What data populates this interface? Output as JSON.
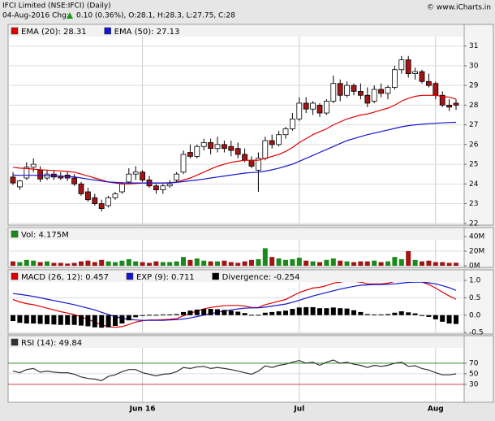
{
  "header": {
    "title": "IFCI Limited (NSE:IFCI) (Daily)",
    "date_change": "04-Aug-2016 Chg:",
    "change": "0.10 (0.36%), O:28.1, H:28.3, L:27.75, C:28",
    "source": "© www.iCharts.in"
  },
  "chart_data": [
    {
      "type": "candlestick",
      "categories": [
        null,
        null,
        null,
        null,
        null,
        null,
        null,
        null,
        null,
        null,
        null,
        null,
        null,
        null,
        null,
        null,
        null,
        null,
        null,
        "Jun 16",
        null,
        null,
        null,
        null,
        null,
        null,
        null,
        null,
        null,
        null,
        null,
        null,
        null,
        null,
        null,
        null,
        null,
        null,
        null,
        null,
        null,
        null,
        "Jul",
        null,
        null,
        null,
        null,
        null,
        null,
        null,
        null,
        null,
        null,
        null,
        null,
        null,
        null,
        null,
        null,
        null,
        null,
        null,
        "Aug",
        null,
        null,
        null
      ],
      "open": [
        24.35,
        23.85,
        24.3,
        24.85,
        24.7,
        24.3,
        24.5,
        24.4,
        24.45,
        24.3,
        24.0,
        23.6,
        23.3,
        23.0,
        22.9,
        23.3,
        23.6,
        24.1,
        24.5,
        24.6,
        24.2,
        23.9,
        23.7,
        23.9,
        24.2,
        24.6,
        25.6,
        25.4,
        25.9,
        26.1,
        25.8,
        26.0,
        25.9,
        25.8,
        25.5,
        25.2,
        24.7,
        25.3,
        26.2,
        26.0,
        26.5,
        26.8,
        27.3,
        28.1,
        27.8,
        28.0,
        27.6,
        28.2,
        29.1,
        28.5,
        29.0,
        28.7,
        28.5,
        28.2,
        28.8,
        28.6,
        28.9,
        29.8,
        30.3,
        29.6,
        29.7,
        29.2,
        29.1,
        28.5,
        28.0,
        28.1
      ],
      "high": [
        24.6,
        24.2,
        25.1,
        25.3,
        24.9,
        24.7,
        24.7,
        24.6,
        24.6,
        24.5,
        24.1,
        23.8,
        23.5,
        23.2,
        23.4,
        23.6,
        24.1,
        24.8,
        24.9,
        24.7,
        24.4,
        24.0,
        24.0,
        24.2,
        24.6,
        25.7,
        26.0,
        26.0,
        26.3,
        26.3,
        26.4,
        26.2,
        26.2,
        26.1,
        25.8,
        25.4,
        25.6,
        26.4,
        26.5,
        26.7,
        26.9,
        27.6,
        28.4,
        28.4,
        28.2,
        28.1,
        28.3,
        29.5,
        29.3,
        29.2,
        29.1,
        29.1,
        28.9,
        29.0,
        29.1,
        29.0,
        30.0,
        30.5,
        30.5,
        29.9,
        29.8,
        29.6,
        29.2,
        28.7,
        28.3,
        28.3
      ],
      "low": [
        23.95,
        23.7,
        24.2,
        24.6,
        24.1,
        24.2,
        24.2,
        24.2,
        24.15,
        23.9,
        23.4,
        23.1,
        22.9,
        22.6,
        22.8,
        23.2,
        23.5,
        24.0,
        24.2,
        24.1,
        23.8,
        23.5,
        23.5,
        23.8,
        24.1,
        24.5,
        25.3,
        25.3,
        25.7,
        25.5,
        25.6,
        25.6,
        25.4,
        25.3,
        25.1,
        24.8,
        23.6,
        25.2,
        25.8,
        25.9,
        26.3,
        26.7,
        27.2,
        27.6,
        27.5,
        27.4,
        27.5,
        28.1,
        28.2,
        28.4,
        28.5,
        28.3,
        27.9,
        28.1,
        28.4,
        28.3,
        28.8,
        29.6,
        29.4,
        29.3,
        29.1,
        28.9,
        28.3,
        27.9,
        27.7,
        27.75
      ],
      "close": [
        24.05,
        24.15,
        24.85,
        25.0,
        24.25,
        24.5,
        24.35,
        24.3,
        24.3,
        24.0,
        23.5,
        23.2,
        23.0,
        22.75,
        23.3,
        23.5,
        24.0,
        24.5,
        24.6,
        24.2,
        23.9,
        23.7,
        23.9,
        24.0,
        24.5,
        25.5,
        25.4,
        25.9,
        26.1,
        25.8,
        26.0,
        25.8,
        25.7,
        25.5,
        25.2,
        24.9,
        25.3,
        26.2,
        26.0,
        26.5,
        26.8,
        27.3,
        28.1,
        27.8,
        28.1,
        27.6,
        28.2,
        29.1,
        28.5,
        29.0,
        28.7,
        28.5,
        28.1,
        28.8,
        28.6,
        28.9,
        29.8,
        30.3,
        29.6,
        29.7,
        29.2,
        29.0,
        28.5,
        28.0,
        27.9,
        28.0
      ],
      "up_color": "#ffffff",
      "down_color": "#a31515",
      "series": [
        {
          "name": "EMA (20): 28.31",
          "color": "#e00000",
          "values": [
            24.85,
            24.8,
            24.78,
            24.75,
            24.72,
            24.7,
            24.68,
            24.66,
            24.63,
            24.6,
            24.5,
            24.4,
            24.3,
            24.2,
            24.1,
            24.05,
            24.0,
            24.0,
            24.02,
            24.05,
            24.05,
            24.05,
            24.05,
            24.06,
            24.1,
            24.2,
            24.3,
            24.45,
            24.6,
            24.75,
            24.9,
            25.0,
            25.1,
            25.15,
            25.2,
            25.2,
            25.2,
            25.3,
            25.4,
            25.5,
            25.65,
            25.85,
            26.1,
            26.3,
            26.5,
            26.65,
            26.8,
            27.0,
            27.15,
            27.3,
            27.4,
            27.5,
            27.55,
            27.65,
            27.75,
            27.85,
            28.0,
            28.2,
            28.35,
            28.45,
            28.5,
            28.5,
            28.5,
            28.45,
            28.4,
            28.31
          ]
        },
        {
          "name": "EMA (50): 27.13",
          "color": "#1515d0",
          "values": [
            24.45,
            24.44,
            24.44,
            24.44,
            24.43,
            24.42,
            24.41,
            24.4,
            24.38,
            24.36,
            24.3,
            24.25,
            24.2,
            24.15,
            24.1,
            24.08,
            24.06,
            24.05,
            24.05,
            24.05,
            24.05,
            24.05,
            24.05,
            24.06,
            24.08,
            24.12,
            24.16,
            24.2,
            24.25,
            24.3,
            24.35,
            24.4,
            24.45,
            24.5,
            24.55,
            24.58,
            24.6,
            24.65,
            24.72,
            24.8,
            24.9,
            25.0,
            25.15,
            25.3,
            25.45,
            25.6,
            25.75,
            25.9,
            26.05,
            26.2,
            26.3,
            26.4,
            26.5,
            26.58,
            26.66,
            26.74,
            26.82,
            26.9,
            26.96,
            27.0,
            27.03,
            27.06,
            27.08,
            27.1,
            27.12,
            27.13
          ]
        }
      ],
      "ylim": [
        21.95,
        32.1
      ],
      "yticks": [
        22,
        23,
        24,
        25,
        26,
        27,
        28,
        29,
        30,
        31
      ],
      "grid": true
    },
    {
      "type": "bar",
      "series": [
        {
          "name": "Vol: 4.175M",
          "color": "#1a8a1a",
          "down_color": "#a31515",
          "values": [
            6,
            5,
            8,
            7,
            5,
            6,
            4,
            4,
            3,
            4,
            6,
            7,
            5,
            8,
            6,
            5,
            7,
            9,
            6,
            5,
            4,
            6,
            5,
            5,
            6,
            12,
            8,
            10,
            7,
            6,
            6,
            7,
            5,
            4,
            6,
            8,
            9,
            24,
            12,
            10,
            8,
            9,
            11,
            7,
            6,
            5,
            8,
            10,
            7,
            6,
            5,
            6,
            6,
            7,
            5,
            6,
            12,
            9,
            20,
            8,
            6,
            7,
            5,
            5,
            4,
            4.175
          ]
        }
      ],
      "ylim": [
        0,
        50
      ],
      "yticks": [
        {
          "value": 0,
          "label": "0M"
        },
        {
          "value": 20,
          "label": "20M"
        },
        {
          "value": 40,
          "label": "40M"
        }
      ],
      "grid": true
    },
    {
      "type": "macd",
      "series": [
        {
          "name": "MACD (26, 12): 0.457",
          "color": "#e00000",
          "values": [
            0.45,
            0.38,
            0.33,
            0.3,
            0.25,
            0.2,
            0.15,
            0.1,
            0.06,
            0.02,
            -0.05,
            -0.12,
            -0.2,
            -0.28,
            -0.33,
            -0.35,
            -0.33,
            -0.27,
            -0.2,
            -0.16,
            -0.14,
            -0.14,
            -0.13,
            -0.12,
            -0.1,
            -0.02,
            0.05,
            0.12,
            0.18,
            0.22,
            0.25,
            0.27,
            0.28,
            0.28,
            0.26,
            0.22,
            0.22,
            0.3,
            0.35,
            0.4,
            0.45,
            0.55,
            0.65,
            0.72,
            0.78,
            0.8,
            0.85,
            0.92,
            0.95,
            0.98,
            0.97,
            0.95,
            0.9,
            0.9,
            0.9,
            0.92,
            0.97,
            1.03,
            1.02,
            1.0,
            0.95,
            0.88,
            0.78,
            0.66,
            0.55,
            0.457
          ]
        },
        {
          "name": "EXP (9): 0.711",
          "color": "#1515d0",
          "values": [
            0.62,
            0.6,
            0.57,
            0.54,
            0.5,
            0.46,
            0.42,
            0.38,
            0.34,
            0.3,
            0.25,
            0.2,
            0.15,
            0.08,
            0.02,
            -0.04,
            -0.09,
            -0.12,
            -0.14,
            -0.15,
            -0.15,
            -0.15,
            -0.15,
            -0.14,
            -0.13,
            -0.11,
            -0.08,
            -0.04,
            0.0,
            0.04,
            0.08,
            0.12,
            0.15,
            0.18,
            0.2,
            0.21,
            0.21,
            0.23,
            0.26,
            0.29,
            0.32,
            0.37,
            0.43,
            0.49,
            0.55,
            0.6,
            0.65,
            0.7,
            0.75,
            0.79,
            0.83,
            0.86,
            0.87,
            0.88,
            0.88,
            0.89,
            0.9,
            0.92,
            0.94,
            0.95,
            0.95,
            0.93,
            0.9,
            0.85,
            0.79,
            0.711
          ]
        },
        {
          "name": "Divergence: -0.254",
          "color": "#000000",
          "bars": true,
          "values": [
            -0.17,
            -0.22,
            -0.24,
            -0.24,
            -0.25,
            -0.26,
            -0.27,
            -0.28,
            -0.28,
            -0.28,
            -0.3,
            -0.32,
            -0.35,
            -0.36,
            -0.35,
            -0.31,
            -0.24,
            -0.15,
            -0.06,
            -0.01,
            0.01,
            0.01,
            0.02,
            0.02,
            0.03,
            0.09,
            0.13,
            0.16,
            0.18,
            0.18,
            0.17,
            0.15,
            0.13,
            0.1,
            0.06,
            0.01,
            0.01,
            0.07,
            0.09,
            0.11,
            0.13,
            0.18,
            0.22,
            0.23,
            0.23,
            0.2,
            0.2,
            0.22,
            0.2,
            0.19,
            0.14,
            0.09,
            0.03,
            0.02,
            0.02,
            0.03,
            0.07,
            0.11,
            0.08,
            0.05,
            0.0,
            -0.05,
            -0.12,
            -0.19,
            -0.24,
            -0.254
          ]
        }
      ],
      "ylim": [
        -0.52,
        1.28
      ],
      "yticks": [
        -0.5,
        {
          "value": 0,
          "label": "0.0"
        },
        0.5,
        {
          "value": 1,
          "label": "1.0"
        }
      ],
      "grid": true
    },
    {
      "type": "line",
      "series": [
        {
          "name": "RSI (14): 49.84",
          "color": "#333333",
          "values": [
            55,
            52,
            58,
            60,
            53,
            55,
            53,
            52,
            52,
            49,
            44,
            41,
            40,
            37,
            45,
            48,
            54,
            58,
            58,
            52,
            49,
            46,
            49,
            50,
            54,
            62,
            60,
            63,
            64,
            60,
            62,
            60,
            58,
            55,
            52,
            49,
            55,
            65,
            62,
            66,
            68,
            72,
            75,
            70,
            72,
            66,
            72,
            76,
            70,
            72,
            68,
            66,
            62,
            66,
            64,
            66,
            70,
            72,
            64,
            65,
            60,
            57,
            52,
            48,
            48,
            49.84
          ]
        }
      ],
      "ylim": [
        -4,
        119
      ],
      "yticks": [
        30,
        50,
        70
      ],
      "level_colors": [
        "#d04040",
        null,
        "#2a8a2a"
      ],
      "grid": true
    }
  ]
}
